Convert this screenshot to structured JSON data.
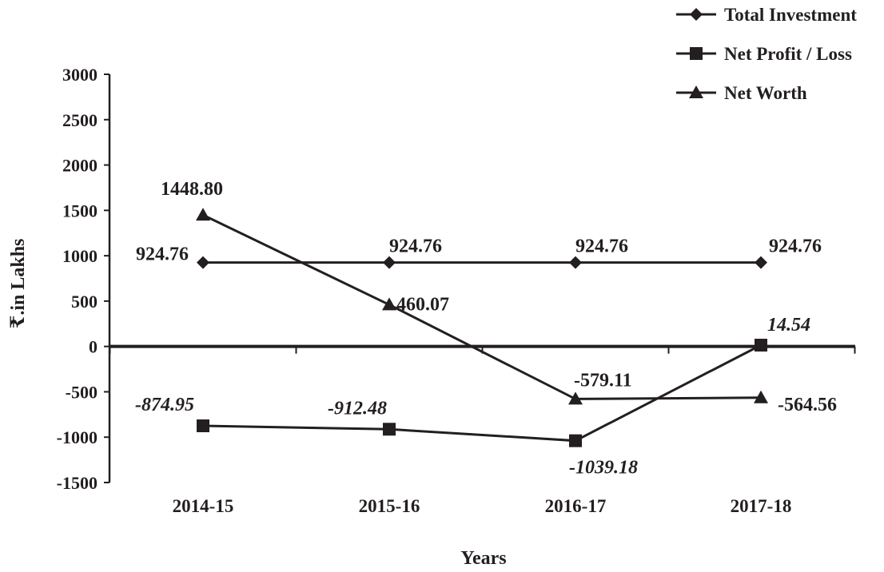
{
  "chart_data": {
    "type": "line",
    "categories": [
      "2014-15",
      "2015-16",
      "2016-17",
      "2017-18"
    ],
    "series": [
      {
        "name": "Total Investment",
        "marker": "diamond",
        "values": [
          924.76,
          924.76,
          924.76,
          924.76
        ],
        "labels": [
          "924.76",
          "924.76",
          "924.76",
          "924.76"
        ],
        "label_style": "normal"
      },
      {
        "name": "Net Profit / Loss",
        "marker": "square",
        "values": [
          -874.95,
          -912.48,
          -1039.18,
          14.54
        ],
        "labels": [
          "-874.95",
          "-912.48",
          "-1039.18",
          "14.54"
        ],
        "label_style": "italic"
      },
      {
        "name": "Net Worth",
        "marker": "triangle",
        "values": [
          1448.8,
          460.07,
          -579.11,
          -564.56
        ],
        "labels": [
          "1448.80",
          "460.07",
          "-579.11",
          "-564.56"
        ],
        "label_style": "normal"
      }
    ],
    "xlabel": "Years",
    "ylabel": "₹.in Lakhs",
    "ylim": [
      -1500,
      3000
    ],
    "yticks": [
      3000,
      2500,
      2000,
      1500,
      1000,
      500,
      0,
      -500,
      -1000,
      -1500
    ],
    "grid": false,
    "legend_position": "top-right",
    "line_color": "#231f20"
  }
}
